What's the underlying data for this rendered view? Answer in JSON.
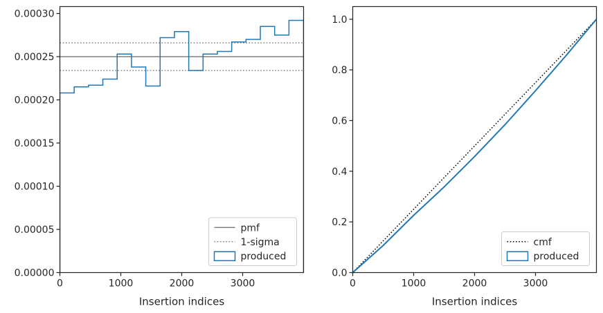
{
  "chart_data": [
    {
      "type": "line",
      "xlabel": "Insertion indices",
      "ylabel": "",
      "xlim": [
        0,
        4000
      ],
      "ylim": [
        0,
        0.000308
      ],
      "x_ticks": [
        0,
        1000,
        2000,
        3000
      ],
      "x_tick_labels": [
        "0",
        "1000",
        "2000",
        "3000"
      ],
      "y_ticks": [
        0,
        5e-05,
        0.0001,
        0.00015,
        0.0002,
        0.00025,
        0.0003
      ],
      "y_tick_labels": [
        "0.00000",
        "0.00005",
        "0.00010",
        "0.00015",
        "0.00020",
        "0.00025",
        "0.00030"
      ],
      "grid": false,
      "legend_position": "lower-right",
      "series": [
        {
          "name": "pmf",
          "kind": "hline",
          "y": 0.00025,
          "color": "#808080",
          "style": "solid"
        },
        {
          "name": "1-sigma",
          "kind": "hlines",
          "y": [
            0.000234,
            0.000266
          ],
          "color": "#808080",
          "style": "dotted"
        },
        {
          "name": "produced",
          "kind": "step-histogram",
          "color": "#1f77b4",
          "bin_edges": [
            0,
            235,
            470,
            705,
            940,
            1175,
            1410,
            1645,
            1880,
            2115,
            2350,
            2585,
            2820,
            3055,
            3290,
            3525,
            3760,
            4000
          ],
          "values": [
            0.000208,
            0.000215,
            0.000217,
            0.000224,
            0.000253,
            0.000238,
            0.000216,
            0.000272,
            0.000279,
            0.000234,
            0.000253,
            0.000256,
            0.000267,
            0.00027,
            0.000285,
            0.000275,
            0.000292
          ]
        }
      ]
    },
    {
      "type": "line",
      "xlabel": "Insertion indices",
      "ylabel": "",
      "xlim": [
        0,
        4000
      ],
      "ylim": [
        0,
        1.05
      ],
      "x_ticks": [
        0,
        1000,
        2000,
        3000
      ],
      "x_tick_labels": [
        "0",
        "1000",
        "2000",
        "3000"
      ],
      "y_ticks": [
        0,
        0.2,
        0.4,
        0.6,
        0.8,
        1.0
      ],
      "y_tick_labels": [
        "0.0",
        "0.2",
        "0.4",
        "0.6",
        "0.8",
        "1.0"
      ],
      "grid": false,
      "legend_position": "lower-right",
      "series": [
        {
          "name": "cmf",
          "kind": "line",
          "color": "#000000",
          "style": "dotted",
          "x": [
            0,
            4000
          ],
          "y": [
            0,
            1.0
          ]
        },
        {
          "name": "produced",
          "kind": "step-cumulative",
          "color": "#1f77b4",
          "x": [
            0,
            500,
            1000,
            1500,
            2000,
            2500,
            3000,
            3500,
            4000
          ],
          "y": [
            0,
            0.107,
            0.226,
            0.338,
            0.458,
            0.584,
            0.718,
            0.856,
            1.0
          ]
        }
      ]
    }
  ]
}
